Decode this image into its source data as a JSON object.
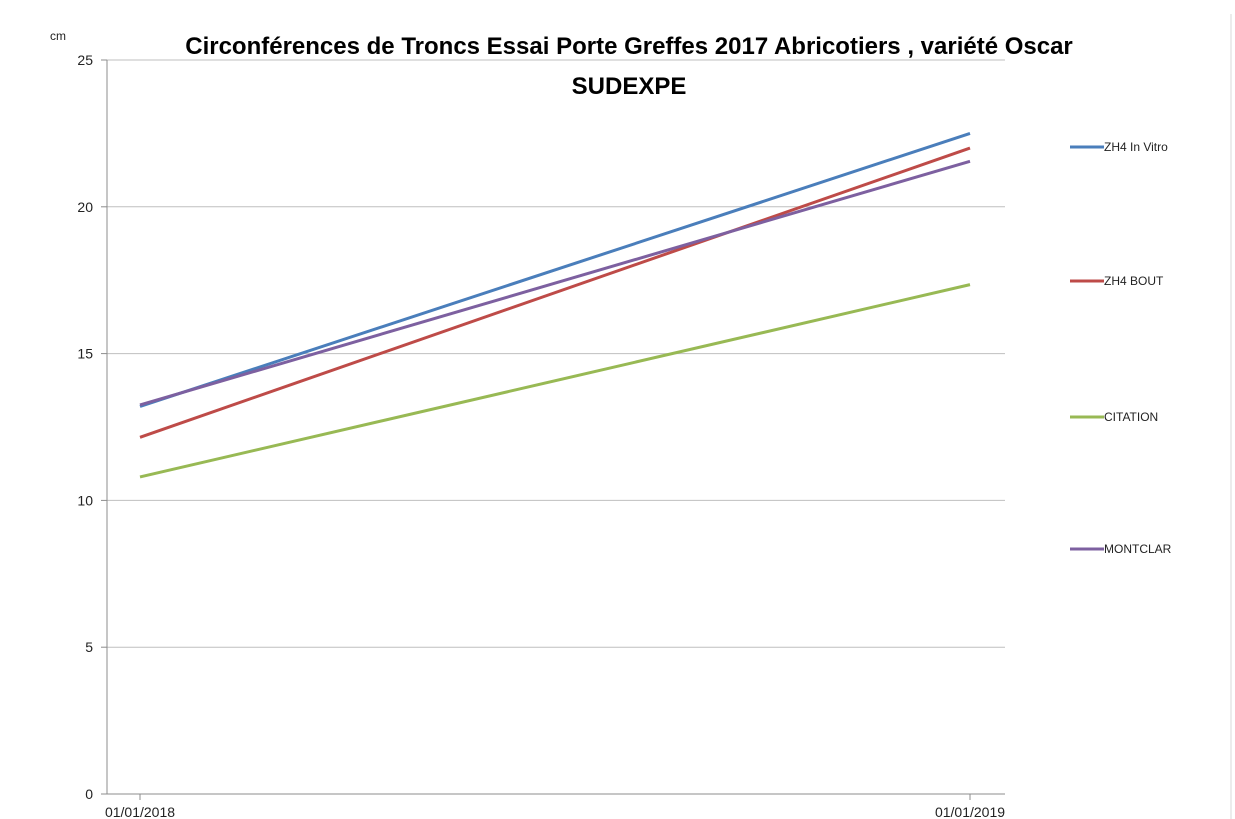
{
  "chart_data": {
    "type": "line",
    "title_lines": [
      "Circonférences de Troncs Essai Porte Greffes 2017 Abricotiers , variété Oscar",
      "SUDEXPE"
    ],
    "ylabel": "cm",
    "xlabel": "",
    "x": [
      "01/01/2018",
      "01/01/2019"
    ],
    "ylim": [
      0,
      25
    ],
    "yticks": [
      0,
      5,
      10,
      15,
      20,
      25
    ],
    "grid": true,
    "legend_position": "right",
    "series": [
      {
        "name": "ZH4 In Vitro",
        "color": "#4a7ebb",
        "values": [
          13.2,
          22.5
        ]
      },
      {
        "name": "ZH4 BOUT",
        "color": "#be4b48",
        "values": [
          12.15,
          22.0
        ]
      },
      {
        "name": "CITATION",
        "color": "#98b954",
        "values": [
          10.8,
          17.35
        ]
      },
      {
        "name": "MONTCLAR",
        "color": "#7d60a0",
        "values": [
          13.25,
          21.55
        ]
      }
    ]
  }
}
